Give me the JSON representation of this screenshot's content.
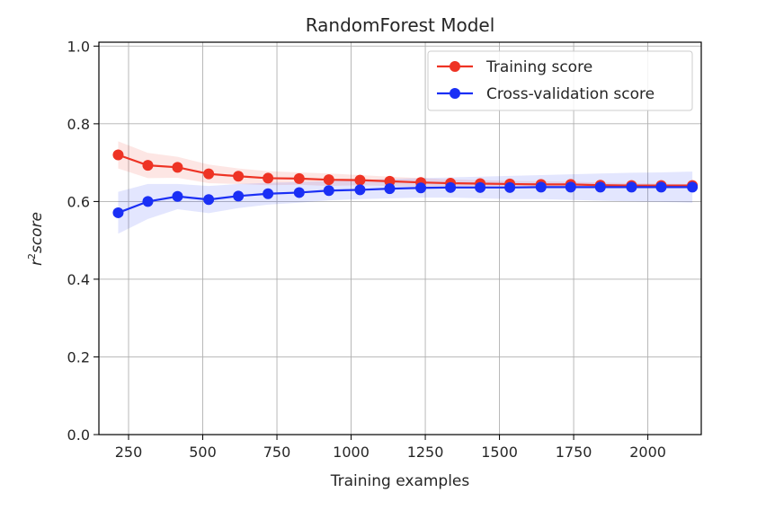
{
  "chart_data": {
    "type": "line",
    "title": "RandomForest Model",
    "xlabel": "Training examples",
    "ylabel_main": "r",
    "ylabel_sup": "2",
    "ylabel_rest": "score",
    "xlim": [
      150,
      2180
    ],
    "ylim": [
      0.0,
      1.01
    ],
    "xticks": [
      250,
      500,
      750,
      1000,
      1250,
      1500,
      1750,
      2000
    ],
    "yticks": [
      0.0,
      0.2,
      0.4,
      0.6,
      0.8,
      1.0
    ],
    "ytick_labels": [
      "0.0",
      "0.2",
      "0.4",
      "0.6",
      "0.8",
      "1.0"
    ],
    "grid": true,
    "legend_position": "top-right",
    "x": [
      215,
      315,
      415,
      520,
      620,
      720,
      825,
      925,
      1030,
      1130,
      1235,
      1335,
      1435,
      1535,
      1640,
      1740,
      1840,
      1945,
      2045,
      2150
    ],
    "series": [
      {
        "name": "Training score",
        "color": "#ee3324",
        "values": [
          0.72,
          0.693,
          0.688,
          0.671,
          0.665,
          0.66,
          0.659,
          0.656,
          0.655,
          0.652,
          0.649,
          0.647,
          0.646,
          0.645,
          0.644,
          0.644,
          0.642,
          0.641,
          0.641,
          0.641
        ],
        "band_upper": [
          0.755,
          0.725,
          0.715,
          0.695,
          0.685,
          0.678,
          0.675,
          0.672,
          0.668,
          0.664,
          0.66,
          0.657,
          0.655,
          0.653,
          0.652,
          0.651,
          0.649,
          0.647,
          0.646,
          0.645
        ],
        "band_lower": [
          0.685,
          0.66,
          0.661,
          0.647,
          0.645,
          0.642,
          0.643,
          0.64,
          0.642,
          0.64,
          0.638,
          0.637,
          0.637,
          0.637,
          0.636,
          0.637,
          0.635,
          0.635,
          0.636,
          0.637
        ]
      },
      {
        "name": "Cross-validation score",
        "color": "#1a2ff5",
        "values": [
          0.571,
          0.6,
          0.613,
          0.605,
          0.614,
          0.62,
          0.623,
          0.628,
          0.63,
          0.633,
          0.635,
          0.636,
          0.636,
          0.636,
          0.637,
          0.637,
          0.637,
          0.637,
          0.637,
          0.637
        ],
        "band_upper": [
          0.625,
          0.645,
          0.645,
          0.64,
          0.645,
          0.648,
          0.65,
          0.653,
          0.655,
          0.658,
          0.66,
          0.662,
          0.664,
          0.666,
          0.668,
          0.67,
          0.672,
          0.674,
          0.675,
          0.677
        ],
        "band_lower": [
          0.517,
          0.555,
          0.58,
          0.57,
          0.583,
          0.592,
          0.597,
          0.603,
          0.606,
          0.608,
          0.61,
          0.61,
          0.608,
          0.606,
          0.606,
          0.604,
          0.602,
          0.6,
          0.599,
          0.597
        ]
      }
    ]
  }
}
